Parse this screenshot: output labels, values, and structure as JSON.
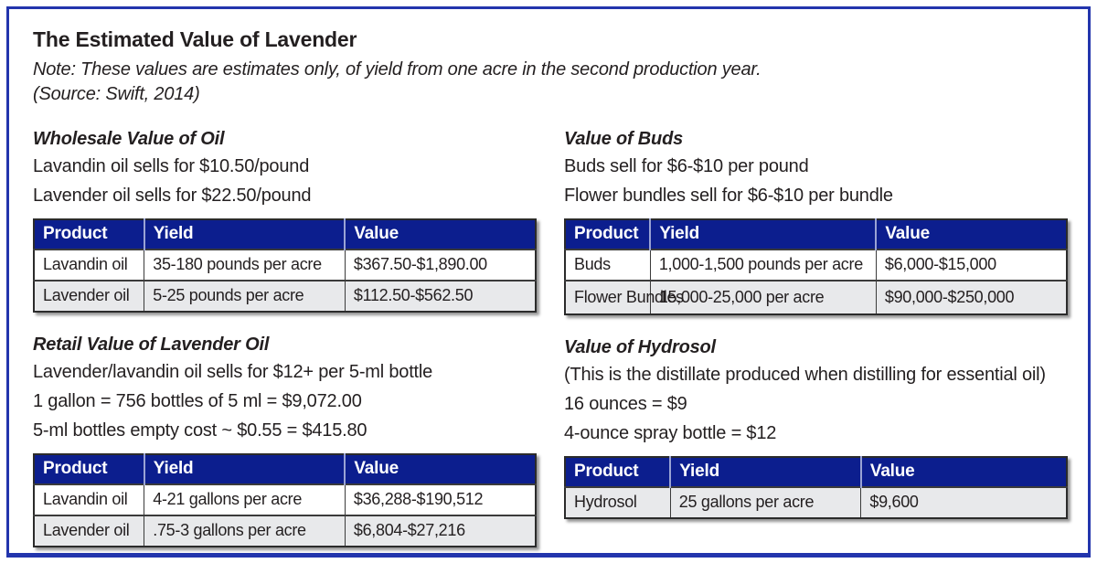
{
  "header": {
    "title": "The Estimated Value of Lavender",
    "note": "Note: These values are estimates only, of yield from one acre in the second production year.",
    "source": "(Source: Swift, 2014)"
  },
  "colors": {
    "frame_border": "#2335ad",
    "table_header_bg": "#0c1e8e",
    "row_alt_bg": "#e8e9eb",
    "text": "#231f20"
  },
  "sections": {
    "wholesale_oil": {
      "heading": "Wholesale Value of Oil",
      "lines": {
        "0": "Lavandin oil sells for $10.50/pound",
        "1": "Lavender oil sells for $22.50/pound"
      },
      "table": {
        "headers": [
          "Product",
          "Yield",
          "Value"
        ],
        "rows": [
          [
            "Lavandin oil",
            "35-180 pounds per acre",
            "$367.50-$1,890.00"
          ],
          [
            "Lavender oil",
            "5-25 pounds per acre",
            "$112.50-$562.50"
          ]
        ]
      }
    },
    "retail_oil": {
      "heading": "Retail Value of Lavender Oil",
      "lines": {
        "0": "Lavender/lavandin oil sells for $12+ per 5-ml bottle",
        "1": "1 gallon = 756 bottles of 5 ml = $9,072.00",
        "2": "5-ml bottles empty cost ~ $0.55 = $415.80"
      },
      "table": {
        "headers": [
          "Product",
          "Yield",
          "Value"
        ],
        "rows": [
          [
            "Lavandin oil",
            "4-21 gallons per acre",
            "$36,288-$190,512"
          ],
          [
            "Lavender oil",
            ".75-3 gallons per acre",
            "$6,804-$27,216"
          ]
        ]
      }
    },
    "buds": {
      "heading": "Value of Buds",
      "lines": {
        "0": "Buds sell for $6-$10 per pound",
        "1": "Flower bundles sell for $6-$10 per bundle"
      },
      "table": {
        "headers": [
          "Product",
          "Yield",
          "Value"
        ],
        "rows": [
          [
            "Buds",
            "1,000-1,500 pounds per acre",
            "$6,000-$15,000"
          ],
          [
            "Flower Bundles",
            "15,000-25,000 per acre",
            "$90,000-$250,000"
          ]
        ]
      }
    },
    "hydrosol": {
      "heading": "Value of Hydrosol",
      "lines": {
        "0": "(This is the distillate produced when distilling for essential oil)",
        "1": "16 ounces = $9",
        "2": "4-ounce spray bottle = $12"
      },
      "table": {
        "headers": [
          "Product",
          "Yield",
          "Value"
        ],
        "rows": [
          [
            "Hydrosol",
            "25 gallons per acre",
            "$9,600"
          ]
        ]
      }
    }
  }
}
